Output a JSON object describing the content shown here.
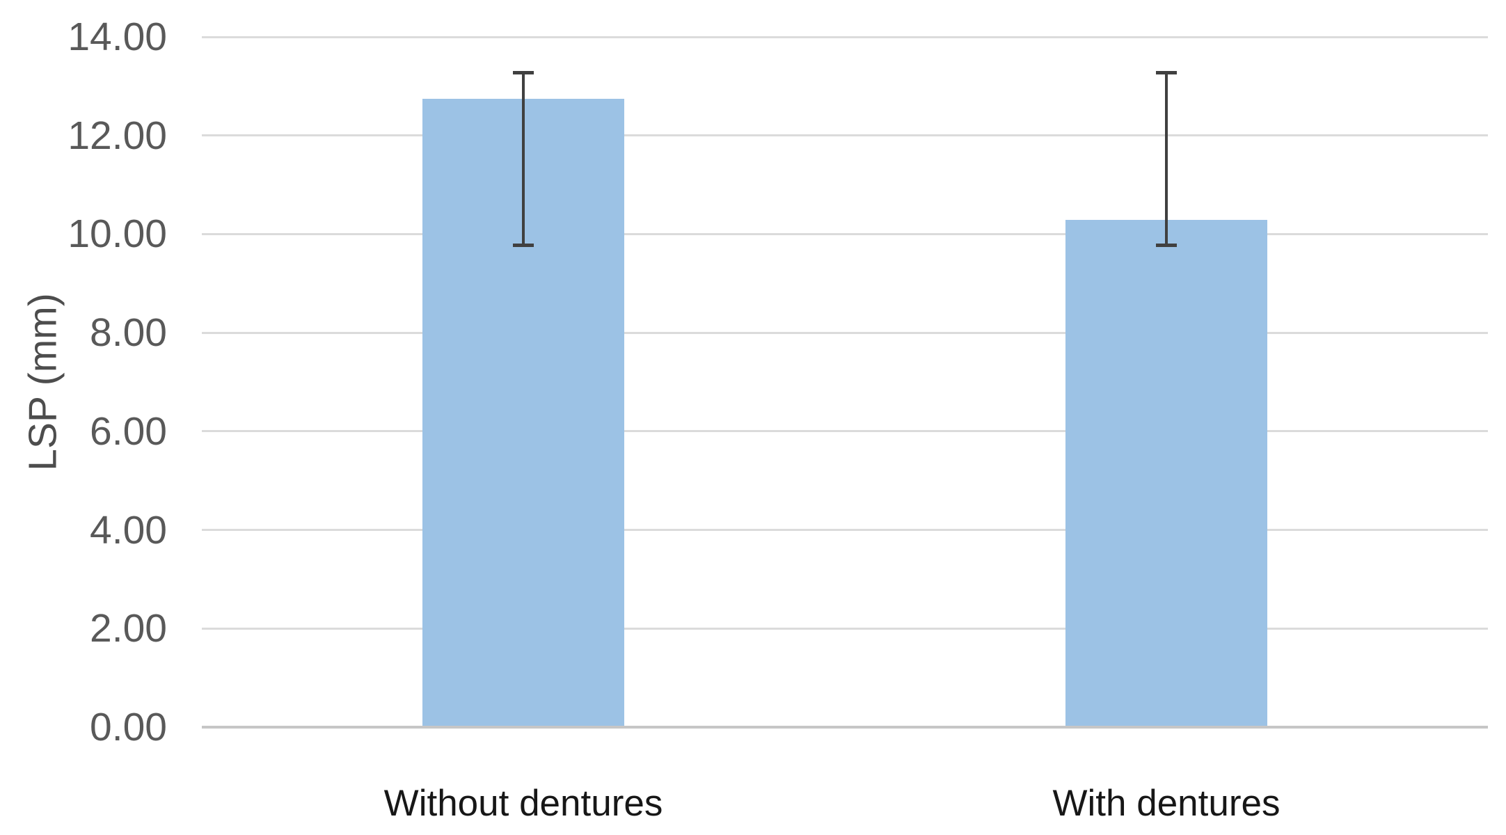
{
  "chart_data": {
    "type": "bar",
    "title": "",
    "xlabel": "",
    "ylabel": "LSP (mm)",
    "categories": [
      "Without dentures",
      "With dentures"
    ],
    "values": [
      12.74,
      10.29
    ],
    "error_bars": {
      "high": [
        13.27,
        13.27
      ],
      "low": [
        9.78,
        9.78
      ]
    },
    "ylim": [
      0,
      14
    ],
    "yticks": [
      0,
      2,
      4,
      6,
      8,
      10,
      12,
      14
    ],
    "ytick_labels": [
      "0.00",
      "2.00",
      "4.00",
      "6.00",
      "8.00",
      "10.00",
      "12.00",
      "14.00"
    ],
    "grid": "horizontal",
    "legend": "none",
    "colors": {
      "bar_fill": "#9CC2E5",
      "error_bar": "#404040",
      "gridline": "#DBDBDB",
      "axis_line": "#C6C6C6",
      "tick_label": "#595959",
      "category_label": "#171717",
      "axis_title": "#4D4D4D",
      "background": "#FFFFFF"
    }
  }
}
